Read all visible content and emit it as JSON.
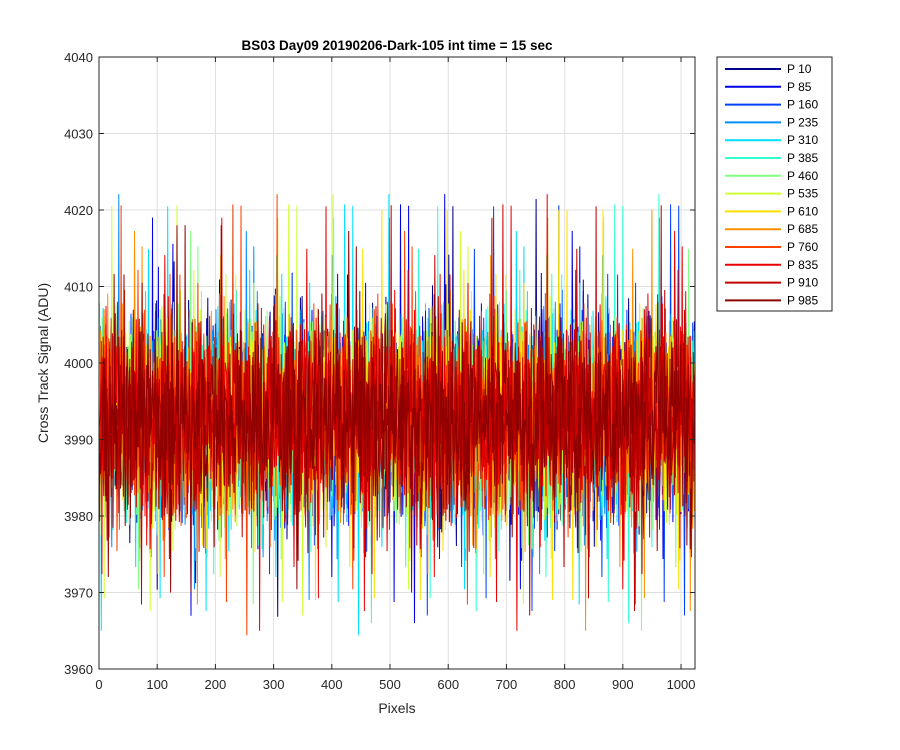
{
  "chart_data": {
    "type": "line",
    "title": "BS03 Day09 20190206-Dark-105 int time = 15 sec",
    "xlabel": "Pixels",
    "ylabel": "Cross Track Signal (ADU)",
    "xlim": [
      0,
      1024
    ],
    "ylim": [
      3960,
      4040
    ],
    "xticks": [
      0,
      100,
      200,
      300,
      400,
      500,
      600,
      700,
      800,
      900,
      1000
    ],
    "yticks": [
      3960,
      3970,
      3980,
      3990,
      4000,
      4010,
      4020,
      4030,
      4040
    ],
    "grid": true,
    "legend_position": "outside-top-right",
    "noise_description": "dark-frame noise around ~3992 ADU, typical range 3975-4010",
    "series": [
      {
        "name": "P 10",
        "color": "#00008f",
        "mean": 3993,
        "min": 3964,
        "max": 4027
      },
      {
        "name": "P 85",
        "color": "#0000ea",
        "mean": 3993,
        "min": 3966,
        "max": 4027
      },
      {
        "name": "P 160",
        "color": "#0040ff",
        "mean": 3993,
        "min": 3967,
        "max": 4021
      },
      {
        "name": "P 235",
        "color": "#008fff",
        "mean": 3993,
        "min": 3969,
        "max": 4030
      },
      {
        "name": "P 310",
        "color": "#00dfff",
        "mean": 3993,
        "min": 3963,
        "max": 4026
      },
      {
        "name": "P 385",
        "color": "#30ffcf",
        "mean": 3993,
        "min": 3966,
        "max": 4031
      },
      {
        "name": "P 460",
        "color": "#80ff80",
        "mean": 3993,
        "min": 3960,
        "max": 4025
      },
      {
        "name": "P 535",
        "color": "#cfff30",
        "mean": 3993,
        "min": 3967,
        "max": 4023
      },
      {
        "name": "P 610",
        "color": "#ffdf00",
        "mean": 3993,
        "min": 3969,
        "max": 4020
      },
      {
        "name": "P 685",
        "color": "#ff8f00",
        "mean": 3993,
        "min": 3964,
        "max": 4020
      },
      {
        "name": "P 760",
        "color": "#ff4000",
        "mean": 3993,
        "min": 3962,
        "max": 4029
      },
      {
        "name": "P 835",
        "color": "#ea0000",
        "mean": 3993,
        "min": 3965,
        "max": 4025
      },
      {
        "name": "P 910",
        "color": "#c00000",
        "mean": 3993,
        "min": 3967,
        "max": 4021
      },
      {
        "name": "P 985",
        "color": "#8f0000",
        "mean": 3993,
        "min": 3970,
        "max": 4018
      }
    ]
  }
}
